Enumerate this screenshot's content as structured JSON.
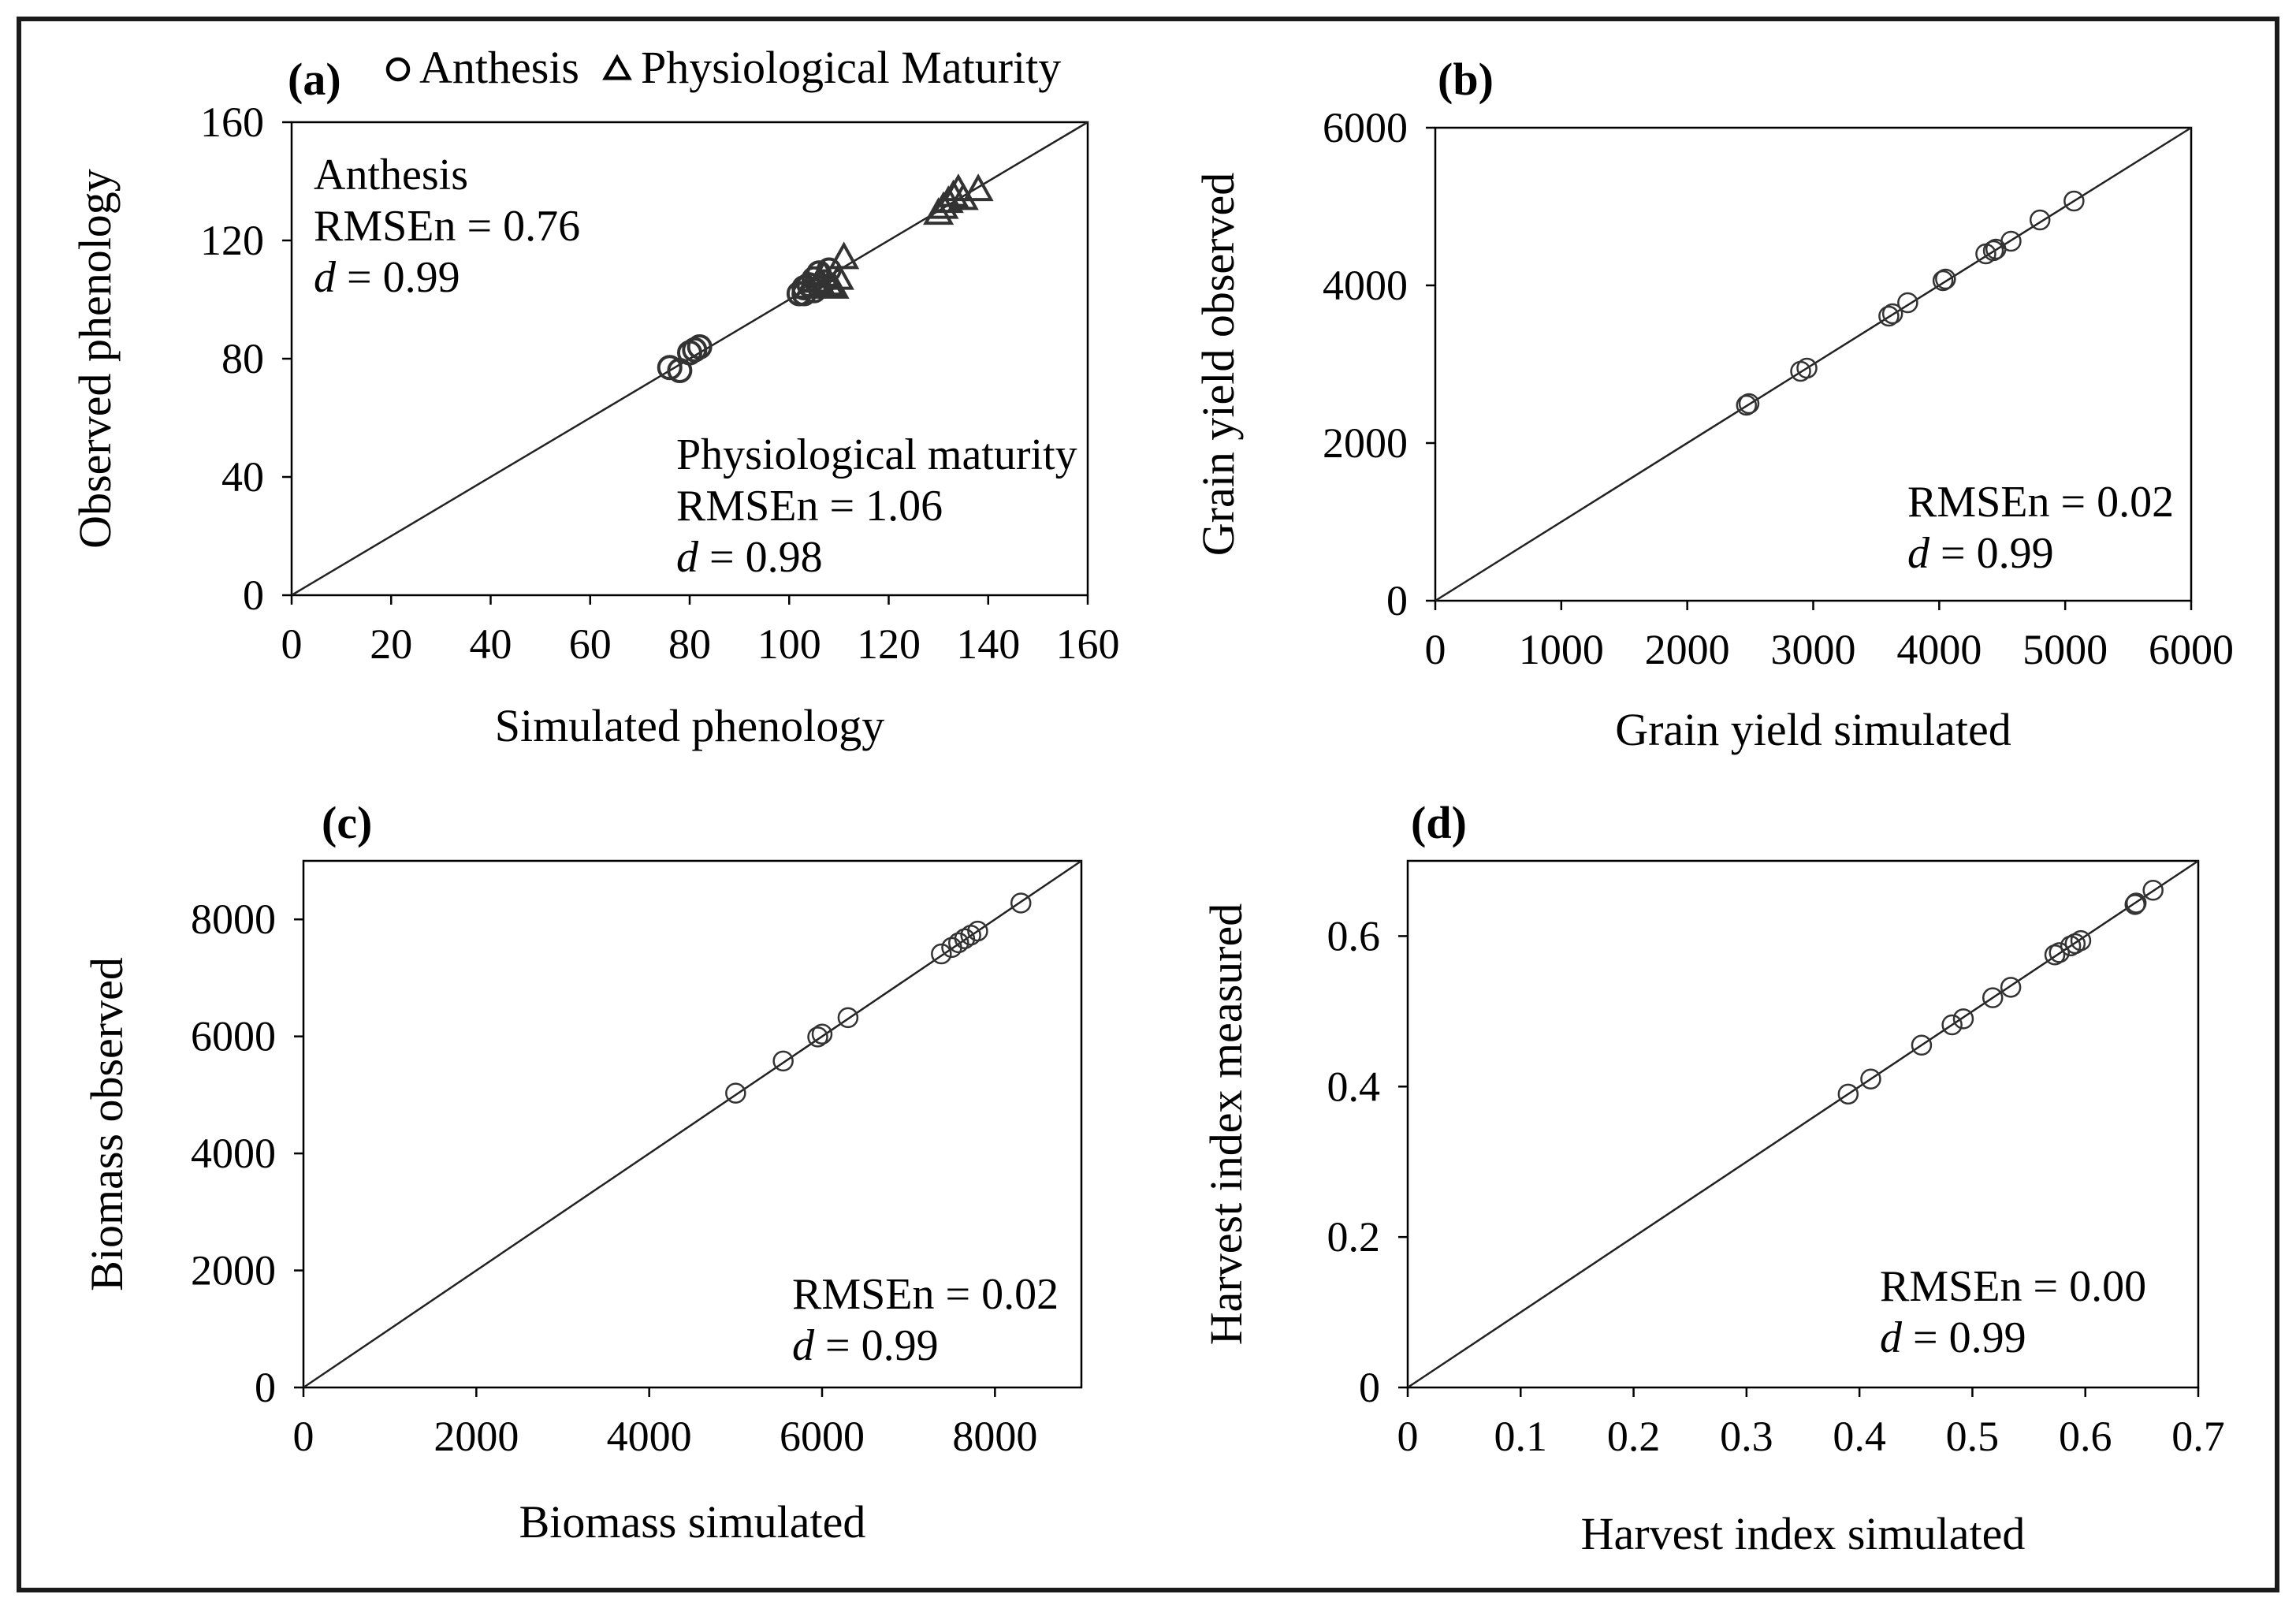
{
  "colors": {
    "ink": "#000000",
    "frame": "#1a1a1a",
    "marker": "#333333",
    "background": "#ffffff"
  },
  "chart_data": [
    {
      "type": "scatter",
      "panel": "(a)",
      "xlabel": "Simulated  phenology",
      "ylabel": "Observed phenology",
      "xlim": [
        0,
        160
      ],
      "ylim": [
        0,
        160
      ],
      "xticks": [
        "0",
        "20",
        "40",
        "60",
        "80",
        "100",
        "120",
        "140",
        "160"
      ],
      "yticks": [
        "0",
        "40",
        "80",
        "120",
        "160"
      ],
      "reference_line": "1:1",
      "legend": [
        {
          "marker": "circle",
          "label": "Anthesis"
        },
        {
          "marker": "triangle",
          "label": "Physiological Maturity"
        }
      ],
      "annotations": [
        {
          "title": "Anthesis",
          "rmse_label": "RMSEn = 0.76",
          "d_symbol": "d",
          "d_value": " = 0.99"
        },
        {
          "title": "Physiological maturity",
          "rmse_label": "RMSEn = 1.06",
          "d_symbol": "d",
          "d_value": " = 0.98"
        }
      ],
      "series": [
        {
          "name": "Anthesis",
          "marker": "circle",
          "points": [
            [
              76,
              77
            ],
            [
              78,
              76
            ],
            [
              80,
              82
            ],
            [
              81,
              83
            ],
            [
              82,
              84
            ],
            [
              102,
              102
            ],
            [
              103,
              104
            ],
            [
              104,
              105
            ],
            [
              105,
              103
            ],
            [
              105,
              107
            ],
            [
              106,
              109
            ],
            [
              107,
              106
            ],
            [
              108,
              110
            ],
            [
              103,
              102
            ]
          ]
        },
        {
          "name": "Physiological Maturity",
          "marker": "triangle",
          "points": [
            [
              104,
              104
            ],
            [
              106,
              106
            ],
            [
              107,
              108
            ],
            [
              108,
              105
            ],
            [
              109,
              104
            ],
            [
              110,
              107
            ],
            [
              111,
              114
            ],
            [
              130,
              129
            ],
            [
              131,
              131
            ],
            [
              132,
              133
            ],
            [
              133,
              135
            ],
            [
              134,
              137
            ],
            [
              135,
              134
            ],
            [
              138,
              137
            ]
          ]
        }
      ]
    },
    {
      "type": "scatter",
      "panel": "(b)",
      "xlabel": "Grain yield  simulated",
      "ylabel": "Grain yield  observed",
      "xlim": [
        0,
        6000
      ],
      "ylim": [
        0,
        6000
      ],
      "xticks": [
        "0",
        "1000",
        "2000",
        "3000",
        "4000",
        "5000",
        "6000"
      ],
      "yticks": [
        "0",
        "2000",
        "4000",
        "6000"
      ],
      "reference_line": "1:1",
      "annotations": [
        {
          "rmse_label": "RMSEn = 0.02",
          "d_symbol": "d",
          "d_value": " = 0.99"
        }
      ],
      "series": [
        {
          "name": "Grain yield",
          "marker": "circle",
          "points": [
            [
              2470,
              2480
            ],
            [
              2490,
              2500
            ],
            [
              2900,
              2910
            ],
            [
              2950,
              2950
            ],
            [
              3600,
              3610
            ],
            [
              3630,
              3640
            ],
            [
              3750,
              3780
            ],
            [
              4030,
              4060
            ],
            [
              4050,
              4080
            ],
            [
              4370,
              4400
            ],
            [
              4430,
              4440
            ],
            [
              4450,
              4460
            ],
            [
              4570,
              4560
            ],
            [
              4800,
              4830
            ],
            [
              5070,
              5070
            ]
          ]
        }
      ]
    },
    {
      "type": "scatter",
      "panel": "(c)",
      "xlabel": "Biomass simulated",
      "ylabel": "Biomass observed",
      "xlim": [
        0,
        9000
      ],
      "ylim": [
        0,
        9000
      ],
      "xticks": [
        "0",
        "2000",
        "4000",
        "6000",
        "8000"
      ],
      "yticks": [
        "0",
        "2000",
        "4000",
        "6000",
        "8000"
      ],
      "reference_line": "1:1",
      "annotations": [
        {
          "rmse_label": "RMSEn = 0.02",
          "d_symbol": "d",
          "d_value": " = 0.99"
        }
      ],
      "series": [
        {
          "name": "Biomass",
          "marker": "circle",
          "points": [
            [
              5000,
              5030
            ],
            [
              5550,
              5580
            ],
            [
              5950,
              5990
            ],
            [
              6000,
              6040
            ],
            [
              6300,
              6320
            ],
            [
              7380,
              7410
            ],
            [
              7500,
              7520
            ],
            [
              7580,
              7600
            ],
            [
              7650,
              7670
            ],
            [
              7720,
              7730
            ],
            [
              7800,
              7800
            ],
            [
              8300,
              8280
            ]
          ]
        }
      ]
    },
    {
      "type": "scatter",
      "panel": "(d)",
      "xlabel": "Harvest index simulated",
      "ylabel": "Harvest index measured",
      "xlim": [
        0,
        0.7
      ],
      "ylim": [
        0,
        0.7
      ],
      "xticks": [
        "0",
        "0.1",
        "0.2",
        "0.3",
        "0.4",
        "0.5",
        "0.6",
        "0.7"
      ],
      "yticks": [
        "0",
        "0.2",
        "0.4",
        "0.6"
      ],
      "reference_line": "1:1",
      "annotations": [
        {
          "rmse_label": "RMSEn = 0.00",
          "d_symbol": "d",
          "d_value": " = 0.99"
        }
      ],
      "series": [
        {
          "name": "Harvest index",
          "marker": "circle",
          "points": [
            [
              0.39,
              0.39
            ],
            [
              0.41,
              0.41
            ],
            [
              0.455,
              0.455
            ],
            [
              0.482,
              0.482
            ],
            [
              0.492,
              0.49
            ],
            [
              0.518,
              0.518
            ],
            [
              0.534,
              0.532
            ],
            [
              0.573,
              0.575
            ],
            [
              0.577,
              0.578
            ],
            [
              0.587,
              0.587
            ],
            [
              0.591,
              0.59
            ],
            [
              0.596,
              0.594
            ],
            [
              0.644,
              0.642
            ],
            [
              0.645,
              0.644
            ],
            [
              0.66,
              0.661
            ]
          ]
        }
      ]
    }
  ]
}
